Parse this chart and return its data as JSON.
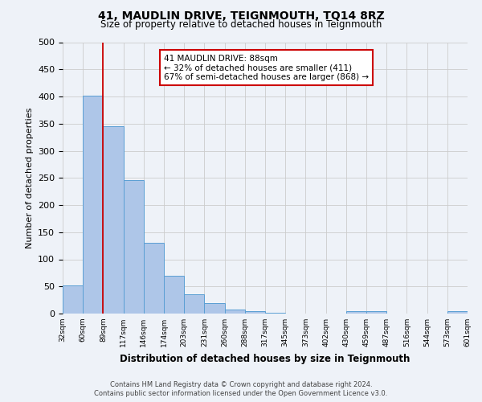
{
  "title": "41, MAUDLIN DRIVE, TEIGNMOUTH, TQ14 8RZ",
  "subtitle": "Size of property relative to detached houses in Teignmouth",
  "xlabel": "Distribution of detached houses by size in Teignmouth",
  "ylabel": "Number of detached properties",
  "footer_line1": "Contains HM Land Registry data © Crown copyright and database right 2024.",
  "footer_line2": "Contains public sector information licensed under the Open Government Licence v3.0.",
  "bin_labels": [
    "32sqm",
    "60sqm",
    "89sqm",
    "117sqm",
    "146sqm",
    "174sqm",
    "203sqm",
    "231sqm",
    "260sqm",
    "288sqm",
    "317sqm",
    "345sqm",
    "373sqm",
    "402sqm",
    "430sqm",
    "459sqm",
    "487sqm",
    "516sqm",
    "544sqm",
    "573sqm",
    "601sqm"
  ],
  "bar_values": [
    52,
    401,
    345,
    246,
    131,
    70,
    35,
    19,
    8,
    5,
    1,
    0,
    0,
    0,
    5,
    5,
    0,
    0,
    0,
    5,
    0
  ],
  "bar_color": "#aec6e8",
  "bar_edge_color": "#5a9fd4",
  "property_line_color": "#cc0000",
  "annotation_line1": "41 MAUDLIN DRIVE: 88sqm",
  "annotation_line2": "← 32% of detached houses are smaller (411)",
  "annotation_line3": "67% of semi-detached houses are larger (868) →",
  "annotation_box_color": "#ffffff",
  "annotation_box_edge_color": "#cc0000",
  "ylim": [
    0,
    500
  ],
  "yticks": [
    0,
    50,
    100,
    150,
    200,
    250,
    300,
    350,
    400,
    450,
    500
  ],
  "grid_color": "#cccccc",
  "background_color": "#eef2f8",
  "figsize": [
    6.0,
    5.0
  ],
  "dpi": 100
}
